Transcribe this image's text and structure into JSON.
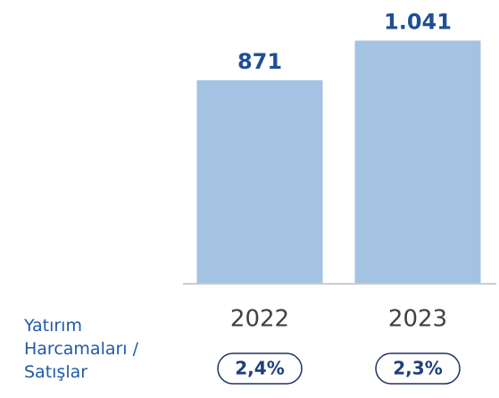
{
  "chart_data": {
    "type": "bar",
    "categories": [
      "2022",
      "2023"
    ],
    "values": [
      871,
      1041
    ],
    "value_labels": [
      "871",
      "1.041"
    ],
    "color": "#a4c3e2",
    "ratio_title": "Yatırım Harcamaları / Satışlar",
    "ratio_labels": [
      "2,4%",
      "2,3%"
    ]
  }
}
